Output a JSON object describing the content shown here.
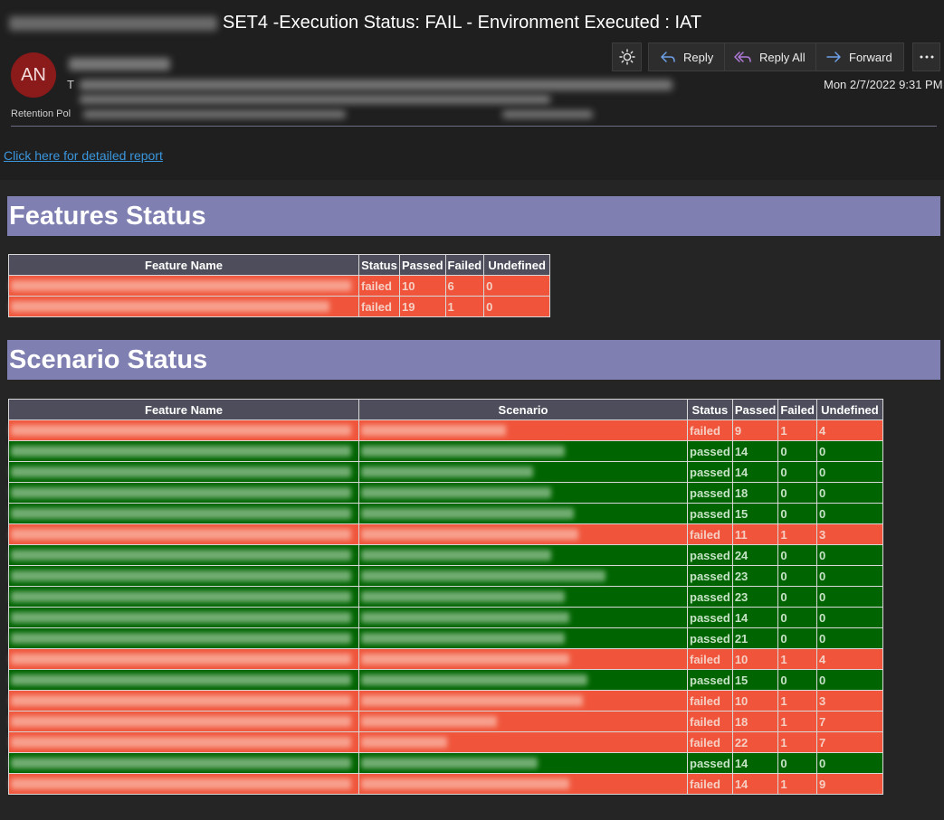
{
  "email": {
    "subject": "SET4 -Execution Status: FAIL - Environment Executed : IAT",
    "avatar_initials": "AN",
    "to_label": "T",
    "retention_label": "Retention Pol",
    "datetime": "Mon 2/7/2022 9:31 PM",
    "detailed_report_link": "Click here for detailed report"
  },
  "toolbar": {
    "theme_icon": "sun-icon",
    "reply_label": "Reply",
    "reply_all_label": "Reply All",
    "forward_label": "Forward",
    "more_icon": "more-icon"
  },
  "features": {
    "title": "Features Status",
    "headers": [
      "Feature Name",
      "Status",
      "Passed",
      "Failed",
      "Undefined"
    ],
    "rows": [
      {
        "status": "failed",
        "passed": "10",
        "failed": "6",
        "undefined": "0"
      },
      {
        "status": "failed",
        "passed": "19",
        "failed": "1",
        "undefined": "0"
      }
    ]
  },
  "scenarios": {
    "title": "Scenario Status",
    "headers": [
      "Feature Name",
      "Scenario",
      "Status",
      "Passed",
      "Failed",
      "Undefined"
    ],
    "rows": [
      {
        "status": "failed",
        "passed": "9",
        "failed": "1",
        "undefined": "4"
      },
      {
        "status": "passed",
        "passed": "14",
        "failed": "0",
        "undefined": "0"
      },
      {
        "status": "passed",
        "passed": "14",
        "failed": "0",
        "undefined": "0"
      },
      {
        "status": "passed",
        "passed": "18",
        "failed": "0",
        "undefined": "0"
      },
      {
        "status": "passed",
        "passed": "15",
        "failed": "0",
        "undefined": "0"
      },
      {
        "status": "failed",
        "passed": "11",
        "failed": "1",
        "undefined": "3"
      },
      {
        "status": "passed",
        "passed": "24",
        "failed": "0",
        "undefined": "0"
      },
      {
        "status": "passed",
        "passed": "23",
        "failed": "0",
        "undefined": "0"
      },
      {
        "status": "passed",
        "passed": "23",
        "failed": "0",
        "undefined": "0"
      },
      {
        "status": "passed",
        "passed": "14",
        "failed": "0",
        "undefined": "0"
      },
      {
        "status": "passed",
        "passed": "21",
        "failed": "0",
        "undefined": "0"
      },
      {
        "status": "failed",
        "passed": "10",
        "failed": "1",
        "undefined": "4"
      },
      {
        "status": "passed",
        "passed": "15",
        "failed": "0",
        "undefined": "0"
      },
      {
        "status": "failed",
        "passed": "10",
        "failed": "1",
        "undefined": "3"
      },
      {
        "status": "failed",
        "passed": "18",
        "failed": "1",
        "undefined": "7"
      },
      {
        "status": "failed",
        "passed": "22",
        "failed": "1",
        "undefined": "7"
      },
      {
        "status": "passed",
        "passed": "14",
        "failed": "0",
        "undefined": "0"
      },
      {
        "status": "failed",
        "passed": "14",
        "failed": "1",
        "undefined": "9"
      }
    ]
  },
  "colors": {
    "fail_row": "#f0553b",
    "pass_row": "#006400",
    "section_bar": "#7f7fb2",
    "header_cell": "#4d4d5b",
    "link": "#3a96dd"
  }
}
